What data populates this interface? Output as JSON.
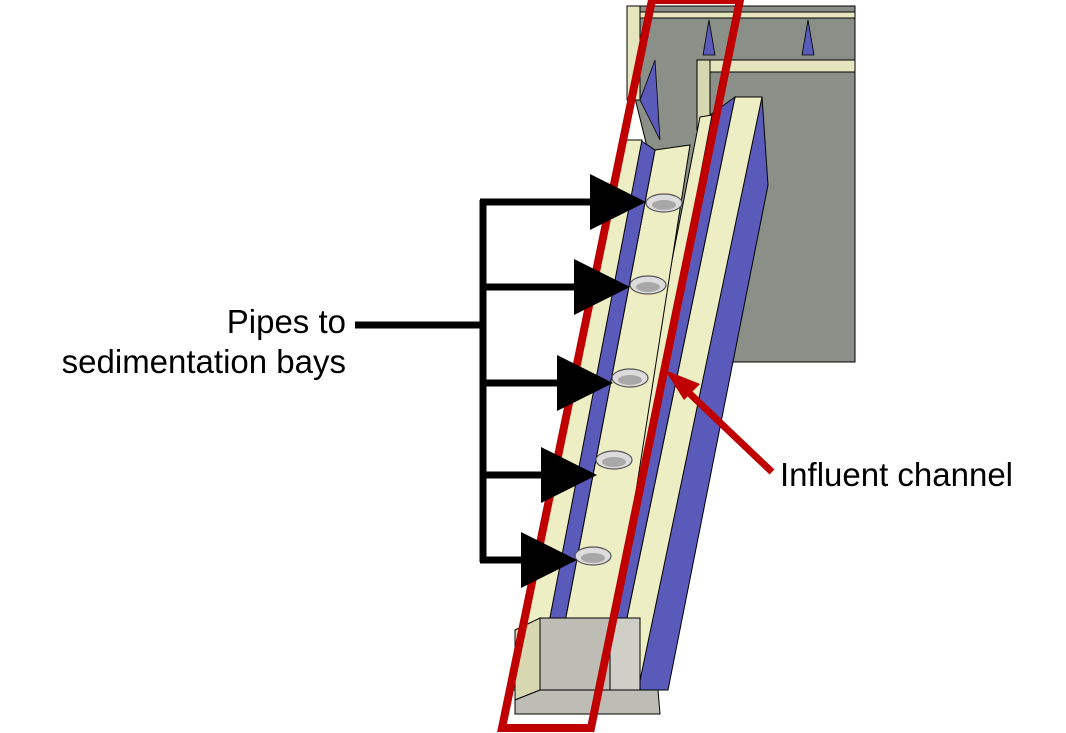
{
  "labels": {
    "pipes_line1": "Pipes to",
    "pipes_line2": "sedimentation bays",
    "influent": "Influent channel"
  },
  "colors": {
    "highlight": "#c00000",
    "wall_cream": "#eeeec4",
    "channel_blue": "#5a5aba",
    "tank_gray": "#8a9088",
    "concrete_gray": "#bdbdb5",
    "arrow": "#000000"
  },
  "pipe_count": 5
}
